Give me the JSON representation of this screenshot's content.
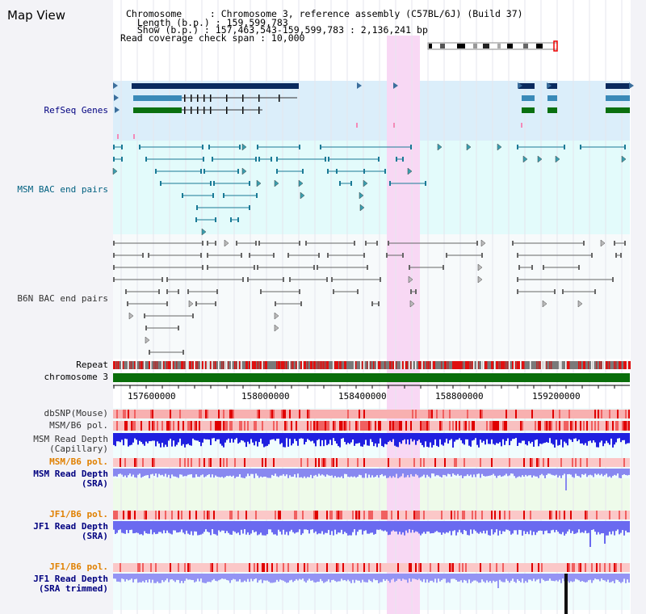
{
  "header": {
    "title": "Map View",
    "lines": [
      "Chromosome     : Chromosome 3, reference assembly (C57BL/6J) (Build 37)",
      "  Length (b.p.) : 159,599,783",
      "  Show (b.p.) : 157,463,543-159,599,783 : 2,136,241 bp",
      "Read coverage check span : 10,000"
    ]
  },
  "tracks": {
    "refseq": "RefSeq Genes",
    "msm_bac": "MSM BAC end pairs",
    "b6n_bac": "B6N BAC end pairs",
    "repeat": "Repeat",
    "chromosome": "chromosome 3",
    "dbsnp": "dbSNP(Mouse)",
    "msm_b6_pol": "MSM/B6 pol.",
    "msm_depth_cap_1": "MSM Read Depth",
    "msm_depth_cap_2": "(Capillary)",
    "msm_b6_pol_sra": "MSM/B6 pol.",
    "msm_depth_sra_1": "MSM Read Depth",
    "msm_depth_sra_2": "(SRA)",
    "jf1_b6_pol": "JF1/B6 pol.",
    "jf1_depth_sra_1": "JF1 Read Depth",
    "jf1_depth_sra_2": "(SRA)",
    "jf1_b6_pol_trim": "JF1/B6 pol.",
    "jf1_depth_trim_1": "JF1 Read Depth",
    "jf1_depth_trim_2": "(SRA trimmed)"
  },
  "axis": {
    "ticks": [
      "157600000",
      "158000000",
      "158400000",
      "158800000",
      "159200000"
    ]
  },
  "colors": {
    "navy": "#000080",
    "teal": "#006080",
    "orange": "#e08000",
    "refseq_bg": "#dbeefa",
    "bac_bg": "#e3fbfb",
    "highlight": "#f8d8f4"
  }
}
